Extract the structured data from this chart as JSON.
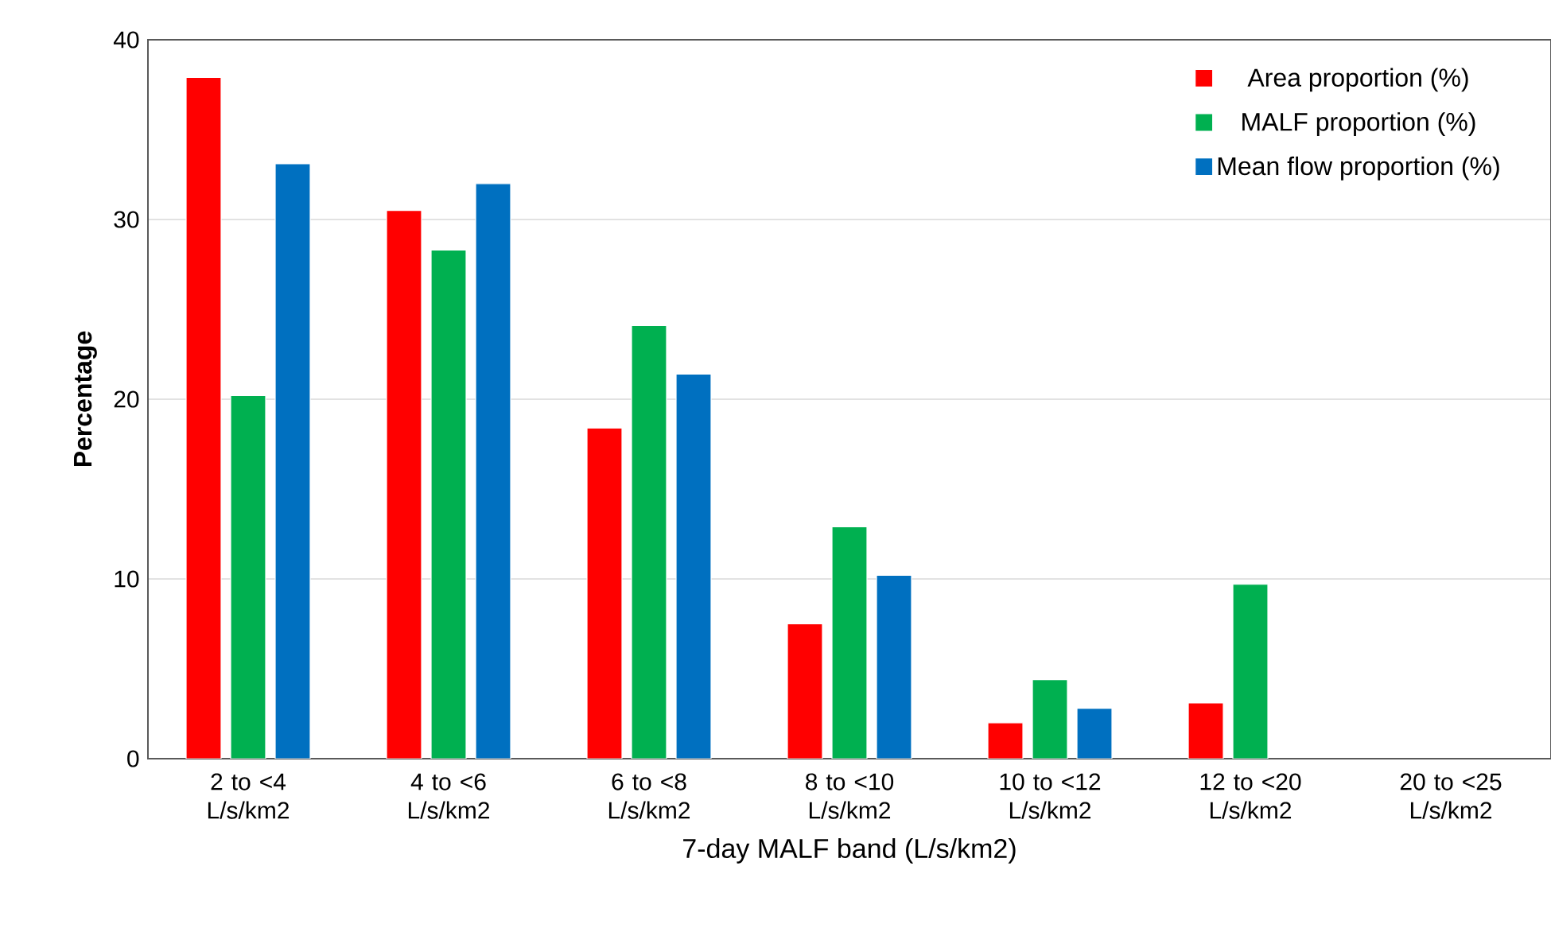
{
  "chart_data": {
    "type": "bar",
    "xlabel": "7-day MALF band (L/s/km2)",
    "ylabel": "Percentage",
    "categories": [
      "2 to <4 L/s/km2",
      "4 to <6 L/s/km2",
      "6 to <8 L/s/km2",
      "8 to <10 L/s/km2",
      "10 to <12 L/s/km2",
      "12 to <20 L/s/km2",
      "20 to <25 L/s/km2"
    ],
    "series": [
      {
        "name": "Area proportion (%)",
        "color": "#ff0000",
        "values": [
          37.9,
          30.5,
          18.4,
          7.5,
          2.0,
          3.1,
          null
        ]
      },
      {
        "name": "MALF proportion (%)",
        "color": "#00b050",
        "values": [
          20.2,
          28.3,
          24.1,
          12.9,
          4.4,
          9.7,
          null
        ]
      },
      {
        "name": "Mean flow proportion (%)",
        "color": "#0070c0",
        "values": [
          33.1,
          32.0,
          21.4,
          10.2,
          2.8,
          null,
          null
        ]
      }
    ],
    "ylim": [
      0,
      40
    ],
    "yticks": [
      0,
      10,
      20,
      30,
      40
    ],
    "grid": "y",
    "legend": "top right"
  }
}
